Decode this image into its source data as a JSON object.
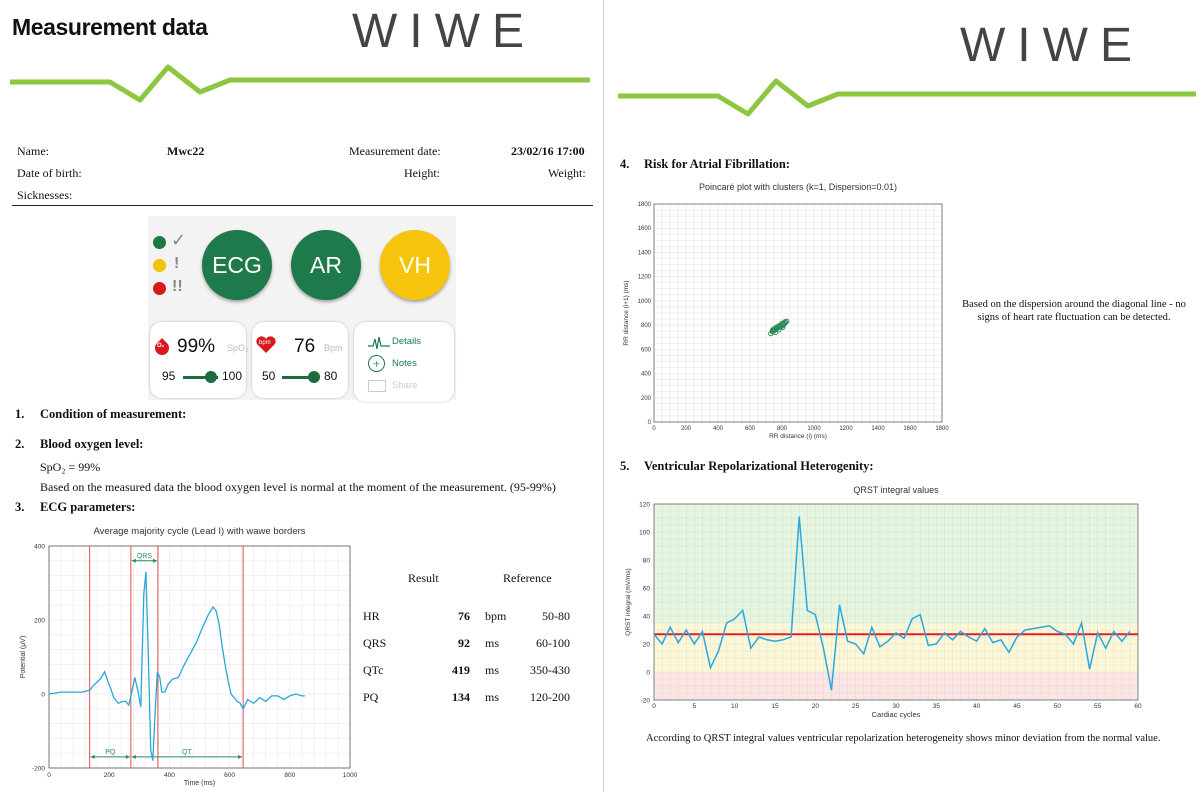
{
  "left": {
    "title": "Measurement data",
    "logo": "WIWE",
    "info": {
      "name_label": "Name:",
      "name_value": "Mwc22",
      "date_label": "Measurement date:",
      "date_value": "23/02/16 17:00",
      "dob_label": "Date of birth:",
      "height_label": "Height:",
      "weight_label": "Weight:",
      "sick_label": "Sicknesses:"
    },
    "app": {
      "ecg": "ECG",
      "ar": "AR",
      "vh": "VH",
      "check": "✓",
      "warn1": "!",
      "warn2": "!!",
      "spo2_value": "99%",
      "spo2_unit": "SpO₂",
      "spo2_min": "95",
      "spo2_max": "100",
      "bpm_badge": "bpm",
      "bpm_value": "76",
      "bpm_unit": "Bpm",
      "bpm_min": "50",
      "bpm_max": "80",
      "o2": "O₂",
      "details": "Details",
      "notes": "Notes",
      "share": "Share"
    },
    "sections": {
      "s1": "1.",
      "s1_title": "Condition of measurement:",
      "s2": "2.",
      "s2_title": "Blood oxygen level:",
      "spo2_line": "SpO₂ = 99%",
      "s2_text": "Based on the measured data the blood oxygen level is normal at the moment of the measurement. (95-99%)",
      "s3": "3.",
      "s3_title": "ECG parameters:"
    },
    "results": {
      "h_result": "Result",
      "h_reference": "Reference",
      "rows": [
        {
          "name": "HR",
          "value": "76",
          "unit": "bpm",
          "ref": "50-80"
        },
        {
          "name": "QRS",
          "value": "92",
          "unit": "ms",
          "ref": "60-100"
        },
        {
          "name": "QTc",
          "value": "419",
          "unit": "ms",
          "ref": "350-430"
        },
        {
          "name": "PQ",
          "value": "134",
          "unit": "ms",
          "ref": "120-200"
        }
      ]
    }
  },
  "right": {
    "logo": "WIWE",
    "s4": "4.",
    "s4_title": "Risk for Atrial Fibrillation:",
    "s4_text": "Based on the dispersion around the diagonal line - no signs of heart rate fluctuation can be detected.",
    "s5": "5.",
    "s5_title": "Ventricular Repolarizational Heterogenity:",
    "s5_text": "According to QRST integral values ventricular repolarization heterogeneity shows minor deviation from the normal value."
  },
  "chart_data": [
    {
      "type": "line",
      "title": "Average majority cycle (Lead I) with wawe borders",
      "xlabel": "Time (ms)",
      "ylabel": "Potential (μV)",
      "xlim": [
        0,
        1000
      ],
      "ylim": [
        -200,
        400
      ],
      "xticks": [
        0,
        200,
        400,
        600,
        800,
        1000
      ],
      "yticks": [
        -200,
        0,
        200,
        400
      ],
      "borders": [
        135,
        272,
        362,
        645
      ],
      "annotations": [
        {
          "label": "QRS",
          "from": 272,
          "to": 362,
          "y": 360
        },
        {
          "label": "PQ",
          "from": 135,
          "to": 272,
          "y": -170
        },
        {
          "label": "QT",
          "from": 272,
          "to": 645,
          "y": -170
        }
      ],
      "x": [
        0,
        40,
        80,
        110,
        135,
        150,
        170,
        185,
        195,
        205,
        215,
        230,
        245,
        255,
        265,
        275,
        285,
        295,
        305,
        315,
        322,
        330,
        338,
        345,
        352,
        360,
        368,
        375,
        385,
        395,
        410,
        430,
        450,
        470,
        490,
        510,
        530,
        545,
        555,
        565,
        575,
        585,
        595,
        605,
        615,
        625,
        635,
        645,
        660,
        680,
        700,
        720,
        740,
        760,
        780,
        800,
        820,
        840,
        850
      ],
      "y": [
        0,
        5,
        5,
        5,
        10,
        25,
        40,
        60,
        35,
        15,
        -10,
        -25,
        -20,
        -20,
        -30,
        5,
        45,
        10,
        -35,
        270,
        330,
        100,
        -150,
        -180,
        -60,
        60,
        45,
        5,
        5,
        25,
        40,
        45,
        80,
        110,
        140,
        180,
        215,
        235,
        225,
        190,
        130,
        80,
        35,
        0,
        -10,
        -20,
        -25,
        -40,
        -15,
        -25,
        -10,
        -20,
        -5,
        -5,
        -15,
        -5,
        0,
        -5,
        -5
      ]
    },
    {
      "type": "scatter",
      "title": "Poincaré plot with clusters (k=1, Dispersion=0.01)",
      "xlabel": "RR distance (i) (ms)",
      "ylabel": "RR distance (i+1) (ms)",
      "xlim": [
        0,
        1800
      ],
      "ylim": [
        0,
        1800
      ],
      "ticks": [
        0,
        200,
        400,
        600,
        800,
        1000,
        1200,
        1400,
        1600,
        1800
      ],
      "x": [
        730,
        740,
        748,
        755,
        762,
        770,
        778,
        785,
        792,
        800,
        808,
        815,
        822,
        830,
        750,
        765,
        780,
        795,
        810,
        740,
        760,
        790,
        805,
        820,
        775,
        745,
        800
      ],
      "y": [
        730,
        745,
        752,
        760,
        768,
        772,
        780,
        788,
        795,
        802,
        808,
        815,
        822,
        832,
        770,
        782,
        760,
        785,
        800,
        755,
        740,
        800,
        780,
        828,
        790,
        765,
        815
      ]
    },
    {
      "type": "line",
      "title": "QRST integral values",
      "xlabel": "Cardiac cycles",
      "ylabel": "QRST integral (mV/ms)",
      "xlim": [
        0,
        60
      ],
      "ylim": [
        -20,
        120
      ],
      "xticks": [
        0,
        5,
        10,
        15,
        20,
        25,
        30,
        35,
        40,
        45,
        50,
        55,
        60
      ],
      "yticks": [
        -20,
        0,
        20,
        40,
        60,
        80,
        100,
        120
      ],
      "reference": 27,
      "x": [
        0,
        1,
        2,
        3,
        4,
        5,
        6,
        7,
        8,
        9,
        10,
        11,
        12,
        13,
        14,
        15,
        16,
        17,
        18,
        19,
        20,
        21,
        22,
        23,
        24,
        25,
        26,
        27,
        28,
        29,
        30,
        31,
        32,
        33,
        34,
        35,
        36,
        37,
        38,
        39,
        40,
        41,
        42,
        43,
        44,
        45,
        46,
        47,
        48,
        49,
        50,
        51,
        52,
        53,
        54,
        55,
        56,
        57,
        58,
        59
      ],
      "y": [
        27,
        20,
        32,
        21,
        30,
        20,
        29,
        3,
        15,
        35,
        38,
        44,
        17,
        25,
        23,
        22,
        23,
        25,
        111,
        44,
        41,
        17,
        -13,
        48,
        22,
        20,
        13,
        32,
        18,
        22,
        28,
        24,
        38,
        41,
        19,
        20,
        28,
        23,
        29,
        25,
        22,
        31,
        21,
        23,
        14,
        25,
        30,
        31,
        32,
        33,
        29,
        27,
        20,
        35,
        2,
        28,
        17,
        29,
        22,
        29
      ]
    }
  ]
}
